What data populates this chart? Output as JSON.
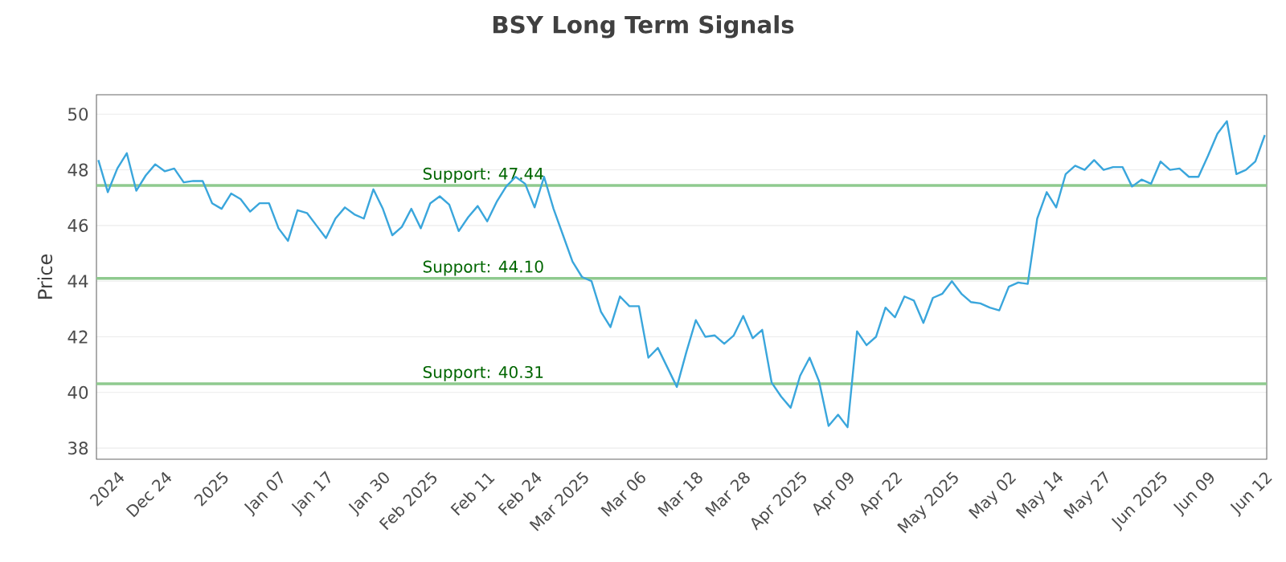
{
  "chart_data": {
    "type": "line",
    "title": "BSY Long Term Signals",
    "ylabel": "Price",
    "categories": [
      null,
      null,
      "2024",
      null,
      null,
      null,
      null,
      "Dec 24",
      null,
      null,
      null,
      null,
      null,
      "2025",
      null,
      null,
      null,
      null,
      null,
      "Jan 07",
      null,
      null,
      null,
      null,
      "Jan 17",
      null,
      null,
      null,
      null,
      null,
      "Jan 30",
      null,
      null,
      null,
      null,
      "Feb 2025",
      null,
      null,
      null,
      null,
      null,
      "Feb 11",
      null,
      null,
      null,
      null,
      "Feb 24",
      null,
      null,
      null,
      null,
      "Mar 2025",
      null,
      null,
      null,
      null,
      null,
      "Mar 06",
      null,
      null,
      null,
      null,
      null,
      "Mar 18",
      null,
      null,
      null,
      null,
      "Mar 28",
      null,
      null,
      null,
      null,
      null,
      "Apr 2025",
      null,
      null,
      null,
      null,
      "Apr 09",
      null,
      null,
      null,
      null,
      "Apr 22",
      null,
      null,
      null,
      null,
      null,
      "May 2025",
      null,
      null,
      null,
      null,
      null,
      "May 02",
      null,
      null,
      null,
      null,
      "May 14",
      null,
      null,
      null,
      null,
      "May 27",
      null,
      null,
      null,
      null,
      null,
      "Jun 2025",
      null,
      null,
      null,
      null,
      "Jun 09",
      null,
      null,
      null,
      null,
      null,
      "Jun 12"
    ],
    "series": [
      {
        "color": "#3aa6dc",
        "values": [
          48.35,
          47.2,
          48.05,
          48.6,
          47.25,
          47.8,
          48.2,
          47.95,
          48.05,
          47.55,
          47.6,
          47.6,
          46.8,
          46.6,
          47.15,
          46.95,
          46.5,
          46.8,
          46.8,
          45.9,
          45.45,
          46.55,
          46.45,
          46.0,
          45.55,
          46.25,
          46.65,
          46.4,
          46.25,
          47.3,
          46.6,
          45.65,
          45.95,
          46.6,
          45.9,
          46.8,
          47.05,
          46.75,
          45.8,
          46.3,
          46.7,
          46.15,
          46.85,
          47.4,
          47.75,
          47.5,
          46.65,
          47.75,
          46.6,
          45.65,
          44.7,
          44.15,
          44.0,
          42.9,
          42.35,
          43.45,
          43.1,
          43.1,
          41.25,
          41.6,
          40.9,
          40.2,
          41.45,
          42.6,
          42.0,
          42.05,
          41.75,
          42.05,
          42.75,
          41.95,
          42.25,
          40.35,
          39.85,
          39.45,
          40.6,
          41.25,
          40.4,
          38.8,
          39.2,
          38.75,
          42.2,
          41.7,
          42.0,
          43.05,
          42.7,
          43.45,
          43.3,
          42.5,
          43.4,
          43.55,
          44.0,
          43.55,
          43.25,
          43.2,
          43.05,
          42.95,
          43.8,
          43.95,
          43.9,
          46.25,
          47.2,
          46.65,
          47.85,
          48.15,
          48.0,
          48.35,
          48.0,
          48.1,
          48.1,
          47.4,
          47.65,
          47.5,
          48.3,
          48.0,
          48.05,
          47.75,
          47.75,
          48.5,
          49.3,
          49.75,
          47.85,
          48.0,
          48.3,
          49.25
        ]
      }
    ],
    "ylim": [
      37.6,
      50.7
    ],
    "yticks": [
      38,
      40,
      42,
      44,
      46,
      48,
      50
    ],
    "grid": "y",
    "ref_lines": [
      {
        "axis": "y",
        "value": 47.44,
        "label": "Support: 47.44",
        "color": "#8fca8f"
      },
      {
        "axis": "y",
        "value": 44.1,
        "label": "Support: 44.10",
        "color": "#8fca8f"
      },
      {
        "axis": "y",
        "value": 40.31,
        "label": "Support: 40.31",
        "color": "#8fca8f"
      }
    ]
  }
}
